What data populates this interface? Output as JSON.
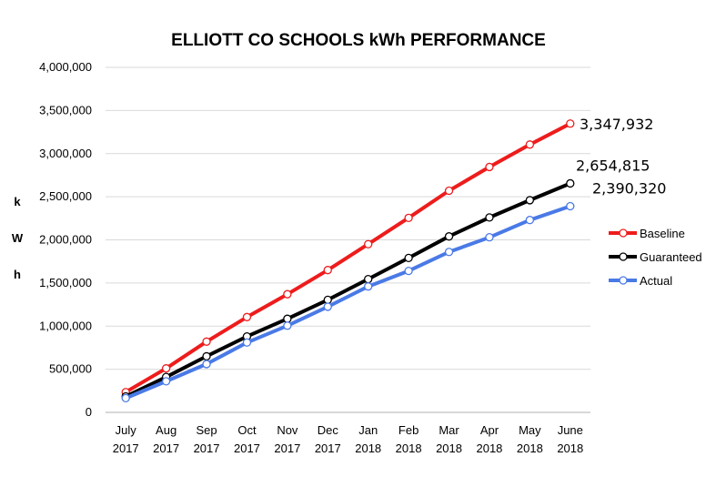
{
  "chart_data": {
    "type": "line",
    "title": "ELLIOTT CO SCHOOLS kWh PERFORMANCE",
    "ylabel_letters": [
      "k",
      "W",
      "h"
    ],
    "categories": [
      [
        "July",
        "2017"
      ],
      [
        "Aug",
        "2017"
      ],
      [
        "Sep",
        "2017"
      ],
      [
        "Oct",
        "2017"
      ],
      [
        "Nov",
        "2017"
      ],
      [
        "Dec",
        "2017"
      ],
      [
        "Jan",
        "2018"
      ],
      [
        "Feb",
        "2018"
      ],
      [
        "Mar",
        "2018"
      ],
      [
        "Apr",
        "2018"
      ],
      [
        "May",
        "2018"
      ],
      [
        "June",
        "2018"
      ]
    ],
    "ylim": [
      0,
      4000000
    ],
    "yticks": [
      0,
      500000,
      1000000,
      1500000,
      2000000,
      2500000,
      3000000,
      3500000,
      4000000
    ],
    "ytick_labels": [
      "0",
      "500,000",
      "1,000,000",
      "1,500,000",
      "2,000,000",
      "2,500,000",
      "3,000,000",
      "3,500,000",
      "4,000,000"
    ],
    "grid": true,
    "legend_position": "right",
    "series": [
      {
        "name": "Baseline",
        "color": "#ee1c1c",
        "values": [
          235000,
          510000,
          820000,
          1105000,
          1370000,
          1650000,
          1950000,
          2255000,
          2570000,
          2845000,
          3105000,
          3347932
        ],
        "end_label": "3,347,932"
      },
      {
        "name": "Guaranteed",
        "color": "#000000",
        "values": [
          185000,
          410000,
          650000,
          880000,
          1085000,
          1305000,
          1545000,
          1790000,
          2040000,
          2260000,
          2460000,
          2654815
        ],
        "end_label": "2,654,815"
      },
      {
        "name": "Actual",
        "color": "#4a7ae6",
        "values": [
          165000,
          360000,
          560000,
          810000,
          1005000,
          1225000,
          1460000,
          1640000,
          1860000,
          2030000,
          2230000,
          2390320
        ],
        "end_label": "2,390,320"
      }
    ]
  }
}
